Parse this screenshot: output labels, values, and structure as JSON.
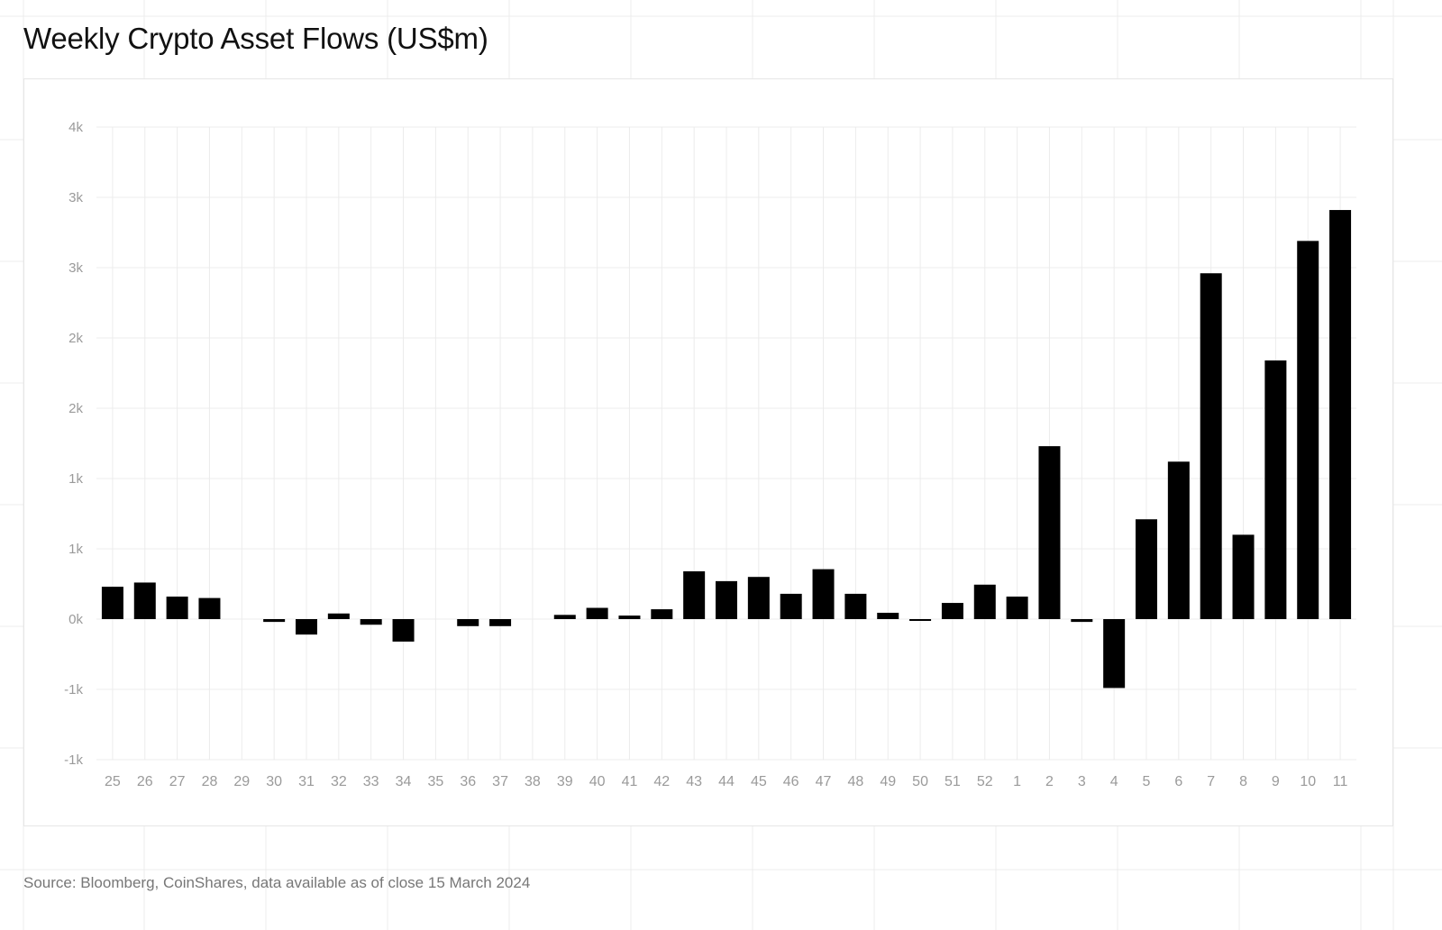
{
  "title": "Weekly Crypto Asset Flows (US$m)",
  "source": "Source: Bloomberg, CoinShares, data available as of close 15 March 2024",
  "colors": {
    "bar": "#000000",
    "grid": "#ececec",
    "tick_text": "#9a9a9a",
    "page_grid": "#ececec"
  },
  "chart_data": {
    "type": "bar",
    "title": "Weekly Crypto Asset Flows (US$m)",
    "xlabel": "",
    "ylabel": "",
    "categories": [
      "25",
      "26",
      "27",
      "28",
      "29",
      "30",
      "31",
      "32",
      "33",
      "34",
      "35",
      "36",
      "37",
      "38",
      "39",
      "40",
      "41",
      "42",
      "43",
      "44",
      "45",
      "46",
      "47",
      "48",
      "49",
      "50",
      "51",
      "52",
      "1",
      "2",
      "3",
      "4",
      "5",
      "6",
      "7",
      "8",
      "9",
      "10",
      "11"
    ],
    "values": [
      230,
      260,
      160,
      150,
      0,
      -20,
      -110,
      40,
      -40,
      -160,
      0,
      -50,
      -50,
      0,
      30,
      80,
      25,
      70,
      340,
      270,
      300,
      180,
      355,
      180,
      45,
      -8,
      115,
      245,
      160,
      1230,
      -20,
      -490,
      710,
      1120,
      2460,
      600,
      1840,
      2690,
      2910
    ],
    "yticks": [
      -1000,
      -500,
      0,
      500,
      1000,
      1500,
      2000,
      2500,
      3000,
      3500
    ],
    "ytick_labels": [
      "-1k",
      "-1k",
      "0k",
      "1k",
      "1k",
      "2k",
      "2k",
      "3k",
      "3k",
      "4k"
    ],
    "ylim": [
      -1000,
      3500
    ],
    "grid": true,
    "legend": "none"
  }
}
